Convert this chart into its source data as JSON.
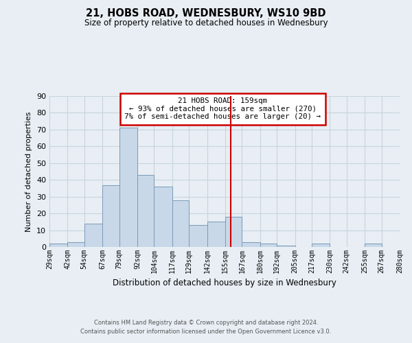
{
  "title": "21, HOBS ROAD, WEDNESBURY, WS10 9BD",
  "subtitle": "Size of property relative to detached houses in Wednesbury",
  "xlabel": "Distribution of detached houses by size in Wednesbury",
  "ylabel": "Number of detached properties",
  "bin_labels": [
    "29sqm",
    "42sqm",
    "54sqm",
    "67sqm",
    "79sqm",
    "92sqm",
    "104sqm",
    "117sqm",
    "129sqm",
    "142sqm",
    "155sqm",
    "167sqm",
    "180sqm",
    "192sqm",
    "205sqm",
    "217sqm",
    "230sqm",
    "242sqm",
    "255sqm",
    "267sqm",
    "280sqm"
  ],
  "bin_edges": [
    29,
    42,
    54,
    67,
    79,
    92,
    104,
    117,
    129,
    142,
    155,
    167,
    180,
    192,
    205,
    217,
    230,
    242,
    255,
    267,
    280
  ],
  "bar_values": [
    2,
    3,
    14,
    37,
    71,
    43,
    36,
    28,
    13,
    15,
    18,
    3,
    2,
    1,
    0,
    2,
    0,
    0,
    2,
    0
  ],
  "bar_color": "#c8d8e8",
  "bar_edge_color": "#7a9ab8",
  "vline_x": 159,
  "vline_color": "#cc0000",
  "ylim": [
    0,
    90
  ],
  "yticks": [
    0,
    10,
    20,
    30,
    40,
    50,
    60,
    70,
    80,
    90
  ],
  "grid_color": "#c8d4de",
  "annotation_box_text": "21 HOBS ROAD: 159sqm\n← 93% of detached houses are smaller (270)\n7% of semi-detached houses are larger (20) →",
  "annotation_box_edge_color": "#cc0000",
  "footer_line1": "Contains HM Land Registry data © Crown copyright and database right 2024.",
  "footer_line2": "Contains public sector information licensed under the Open Government Licence v3.0.",
  "background_color": "#e8eef4",
  "plot_bg_color": "#e8eef4"
}
